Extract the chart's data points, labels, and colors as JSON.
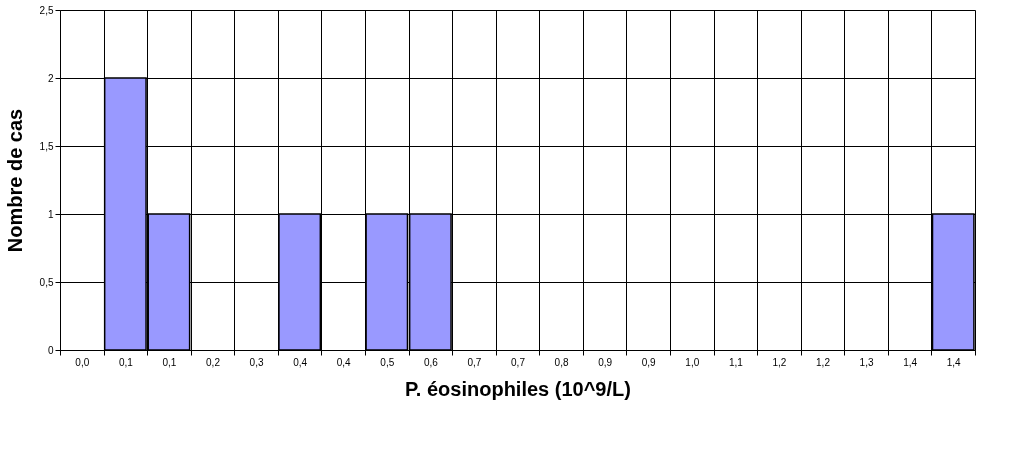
{
  "chart_data": {
    "type": "bar",
    "xlabel": "P. éosinophiles (10^9/L)",
    "ylabel": "Nombre de cas",
    "categories": [
      "0,0",
      "0,1",
      "0,1",
      "0,2",
      "0,3",
      "0,4",
      "0,4",
      "0,5",
      "0,6",
      "0,7",
      "0,7",
      "0,8",
      "0,9",
      "0,9",
      "1,0",
      "1,1",
      "1,2",
      "1,2",
      "1,3",
      "1,4",
      "1,4"
    ],
    "values": [
      0,
      2,
      1,
      0,
      0,
      1,
      0,
      1,
      1,
      0,
      0,
      0,
      0,
      0,
      0,
      0,
      0,
      0,
      0,
      0,
      1
    ],
    "color": "#9999ff",
    "ylim": [
      0,
      2.5
    ],
    "yticks": [
      0,
      {
        "value": 0.5,
        "label": "0,5"
      },
      1,
      {
        "value": 1.5,
        "label": "1,5"
      },
      2,
      {
        "value": 2.5,
        "label": "2,5"
      }
    ],
    "grid": true
  }
}
